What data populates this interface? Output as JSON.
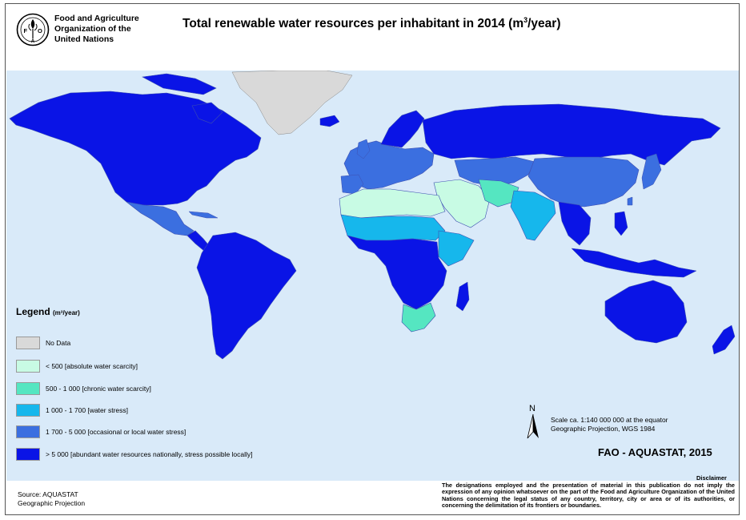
{
  "organization": {
    "line1": "Food and Agriculture",
    "line2": "Organization of the",
    "line3": "United Nations",
    "logo_letters": "F A O",
    "logo_motto": "FIAT PANIS"
  },
  "title": {
    "main": "Total renewable water resources per inhabitant in 2014 (m",
    "sup": "3",
    "end": "/year)"
  },
  "legend": {
    "title": "Legend",
    "unit": "(m³/year)",
    "items": [
      {
        "label": "No Data",
        "color": "#d9d9d9"
      },
      {
        "label": "< 500 [absolute water scarcity]",
        "color": "#c8fbe4"
      },
      {
        "label": "500 - 1 000 [chronic water scarcity]",
        "color": "#55e6c1"
      },
      {
        "label": "1 000 - 1 700 [water stress]",
        "color": "#16b7ec"
      },
      {
        "label": "1 700 - 5 000 [occasional or local water stress]",
        "color": "#3b6fe0"
      },
      {
        "label": "> 5 000 [abundant water resources nationally, stress possible locally]",
        "color": "#0a14e6"
      }
    ]
  },
  "map": {
    "ocean_color": "#d9eaf9",
    "north_label": "N",
    "scale_line1": "Scale ca. 1:140 000 000 at the equator",
    "scale_line2": "Geographic Projection, WGS 1984"
  },
  "credit": "FAO - AQUASTAT, 2015",
  "disclaimer": {
    "title": "Disclaimer",
    "text": "The designations employed and the presentation of material in this publication do not imply the expression of any opinion whatsoever on the part of the Food and Agriculture Organization of the United Nations concerning the legal status of any country, territory, city or area or of its authorities, or concerning the delimitation of its frontiers or boundaries."
  },
  "source": {
    "line1": "Source: AQUASTAT",
    "line2": "Geographic Projection"
  }
}
